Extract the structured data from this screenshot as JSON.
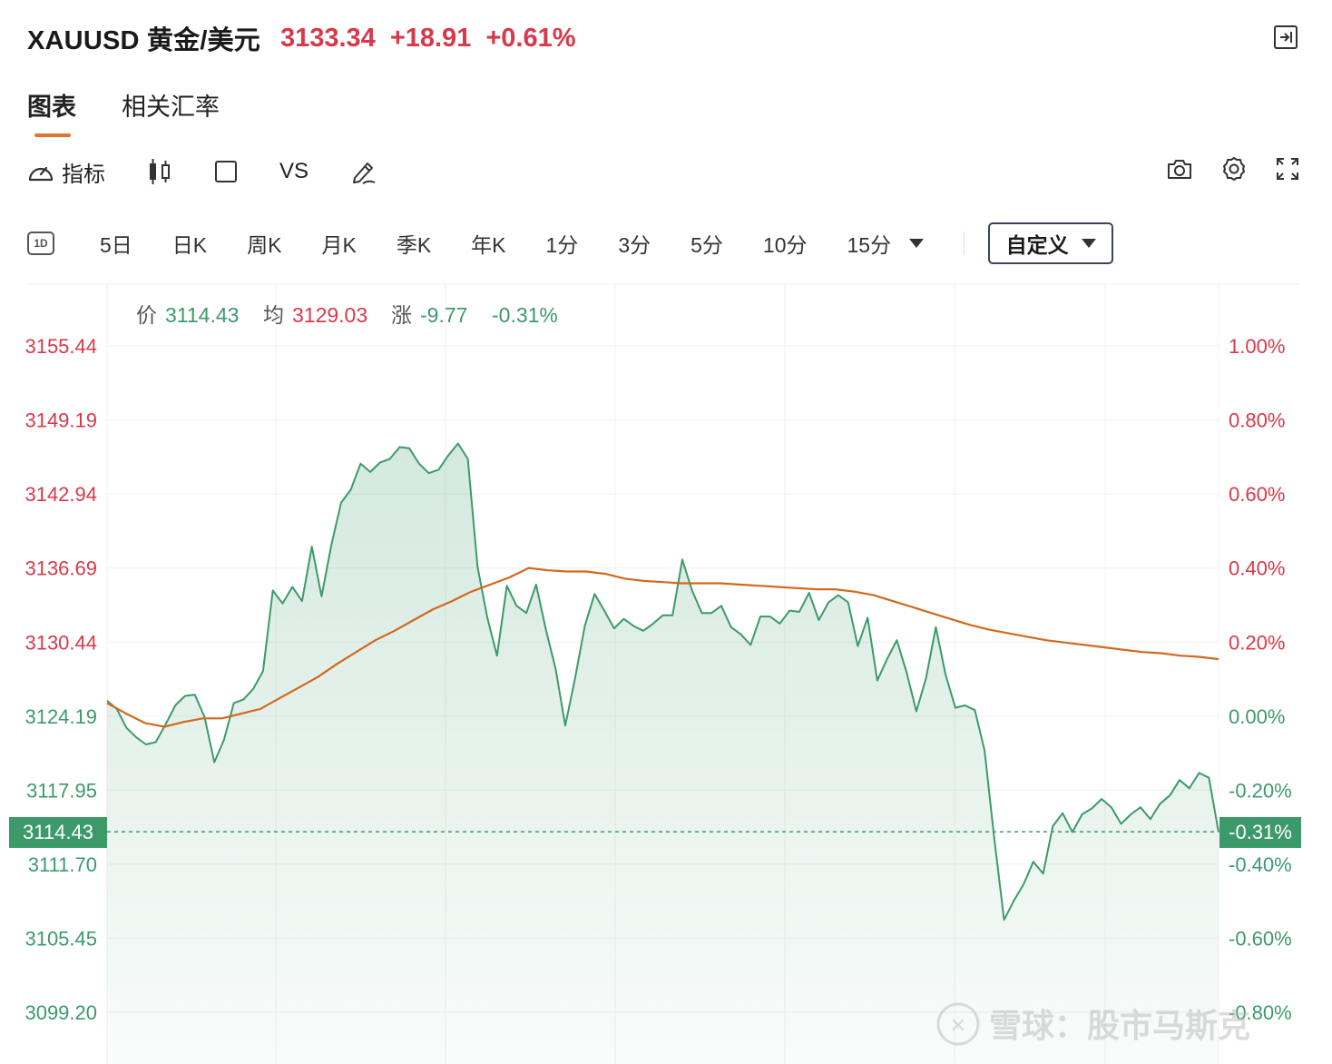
{
  "header": {
    "symbol": "XAUUSD 黄金/美元",
    "price": "3133.34",
    "change": "+18.91",
    "change_pct": "+0.61%"
  },
  "tabs": [
    {
      "label": "图表",
      "active": true
    },
    {
      "label": "相关汇率",
      "active": false
    }
  ],
  "toolbar": {
    "indicator_label": "指标",
    "vs_label": "VS",
    "icons": [
      "gauge-icon",
      "candlestick-icon",
      "square-icon",
      "pencil-icon",
      "camera-icon",
      "gear-icon",
      "fullscreen-icon"
    ]
  },
  "periods": {
    "day_badge": "1D",
    "items": [
      "5日",
      "日K",
      "周K",
      "月K",
      "季K",
      "年K",
      "1分",
      "3分",
      "5分",
      "10分"
    ],
    "more_label": "15分",
    "custom_label": "自定义"
  },
  "info": {
    "price_label": "价",
    "price_value": "3114.43",
    "avg_label": "均",
    "avg_value": "3129.03",
    "chg_label": "涨",
    "chg_value": "-9.77",
    "chg_pct": "-0.31%"
  },
  "watermark": "雪球：股市马斯克",
  "colors": {
    "up": "#d8394a",
    "down": "#3c9a6a",
    "avg_line": "#d2691e",
    "accent": "#e3742b"
  },
  "chart_data": {
    "type": "line",
    "y_left_ticks": [
      "3155.44",
      "3149.19",
      "3142.94",
      "3136.69",
      "3130.44",
      "3124.19",
      "3117.95",
      "3111.70",
      "3105.45",
      "3099.20"
    ],
    "y_right_ticks": [
      "1.00%",
      "0.80%",
      "0.60%",
      "0.40%",
      "0.20%",
      "0.00%",
      "-0.20%",
      "-0.40%",
      "-0.60%",
      "-0.80%"
    ],
    "current_price": "3114.43",
    "current_pct": "-0.31%",
    "prev_close": 3124.19,
    "ylim": [
      3099.2,
      3155.44
    ],
    "grid": true,
    "series": [
      {
        "role": "price",
        "values": [
          3125.5,
          3124.8,
          3123.2,
          3122.4,
          3121.8,
          3122.0,
          3123.5,
          3125.1,
          3125.9,
          3126.0,
          3124.1,
          3120.3,
          3122.2,
          3125.3,
          3125.6,
          3126.5,
          3128.0,
          3134.8,
          3133.7,
          3135.1,
          3133.9,
          3138.5,
          3134.3,
          3138.6,
          3142.2,
          3143.3,
          3145.5,
          3144.8,
          3145.6,
          3145.9,
          3146.9,
          3146.8,
          3145.5,
          3144.7,
          3145.0,
          3146.2,
          3147.2,
          3145.9,
          3136.8,
          3132.5,
          3129.3,
          3135.2,
          3133.5,
          3132.9,
          3135.3,
          3131.5,
          3128.2,
          3123.4,
          3127.4,
          3131.8,
          3134.5,
          3133.1,
          3131.6,
          3132.4,
          3131.8,
          3131.4,
          3132.0,
          3132.7,
          3132.7,
          3137.4,
          3134.8,
          3132.9,
          3132.9,
          3133.5,
          3131.7,
          3131.1,
          3130.2,
          3132.6,
          3132.6,
          3132.0,
          3133.1,
          3133.0,
          3134.6,
          3132.3,
          3133.8,
          3134.4,
          3133.8,
          3130.1,
          3132.5,
          3127.2,
          3129.0,
          3130.6,
          3127.9,
          3124.6,
          3127.4,
          3131.7,
          3127.7,
          3124.9,
          3125.1,
          3124.7,
          3121.3,
          3113.8,
          3107.0,
          3108.6,
          3110.0,
          3111.9,
          3110.9,
          3114.9,
          3116.0,
          3114.4,
          3115.9,
          3116.4,
          3117.2,
          3116.5,
          3115.1,
          3115.9,
          3116.5,
          3115.5,
          3116.8,
          3117.5,
          3118.8,
          3118.1,
          3119.4,
          3119.0,
          3114.4
        ]
      },
      {
        "role": "average",
        "values": [
          3125.3,
          3124.4,
          3123.6,
          3123.3,
          3123.7,
          3124.0,
          3124.0,
          3124.4,
          3124.8,
          3125.7,
          3126.6,
          3127.5,
          3128.6,
          3129.6,
          3130.6,
          3131.4,
          3132.3,
          3133.2,
          3133.9,
          3134.7,
          3135.3,
          3135.9,
          3136.7,
          3136.5,
          3136.4,
          3136.4,
          3136.2,
          3135.8,
          3135.6,
          3135.5,
          3135.4,
          3135.4,
          3135.4,
          3135.3,
          3135.2,
          3135.1,
          3135.0,
          3134.9,
          3134.9,
          3134.7,
          3134.4,
          3133.9,
          3133.4,
          3132.9,
          3132.4,
          3131.9,
          3131.5,
          3131.2,
          3130.9,
          3130.6,
          3130.4,
          3130.2,
          3130.0,
          3129.8,
          3129.6,
          3129.5,
          3129.3,
          3129.2,
          3129.0
        ]
      }
    ]
  }
}
